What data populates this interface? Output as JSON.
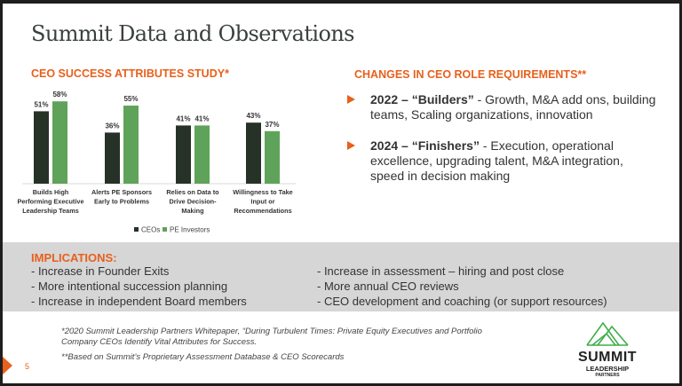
{
  "title": "Summit Data and Observations",
  "chart_data": {
    "type": "bar",
    "title": "CEO SUCCESS ATTRIBUTES STUDY*",
    "categories": [
      "Builds High Performing Executive Leadership Teams",
      "Alerts PE Sponsors Early to Problems",
      "Relies on Data to Drive Decision-Making",
      "Willingness to Take Input or Recommendations"
    ],
    "category_lines": [
      [
        "Builds High",
        "Performing Executive",
        "Leadership Teams"
      ],
      [
        "Alerts PE Sponsors",
        "Early to Problems"
      ],
      [
        "Relies on Data to",
        "Drive Decision-",
        "Making"
      ],
      [
        "Willingness to Take",
        "Input or",
        "Recommendations"
      ]
    ],
    "series": [
      {
        "name": "CEOs",
        "values": [
          51,
          36,
          41,
          43
        ],
        "labels": [
          "51%",
          "36%",
          "41%",
          "43%"
        ],
        "color": "#263228"
      },
      {
        "name": "PE Investors",
        "values": [
          58,
          55,
          41,
          37
        ],
        "labels": [
          "58%",
          "55%",
          "41%",
          "37%"
        ],
        "color": "#5fa35a"
      }
    ],
    "ylim": [
      0,
      60
    ],
    "grid": false,
    "legend": "bottom"
  },
  "changes": {
    "heading": "CHANGES IN CEO ROLE REQUIREMENTS**",
    "items": [
      {
        "bold": "2022 – “Builders”",
        "text": " - Growth, M&A add ons, building teams, Scaling organizations, innovation"
      },
      {
        "bold": "2024 – “Finishers”",
        "text": " - Execution, operational excellence, upgrading talent, M&A integration, speed in decision making"
      }
    ]
  },
  "implications": {
    "heading": "IMPLICATIONS:",
    "left": [
      "- Increase in Founder Exits",
      "- More intentional succession planning",
      "- Increase in independent Board members"
    ],
    "right": [
      "- Increase in assessment – hiring and post close",
      "- More annual CEO reviews",
      "- CEO development and coaching (or support resources)"
    ]
  },
  "footnotes": [
    "*2020 Summit Leadership Partners Whitepaper, “During Turbulent Times: Private Equity Executives and Portfolio Company CEOs Identify Vital Attributes for Success.",
    "**Based on Summit’s Proprietary Assessment Database & CEO Scorecards"
  ],
  "page_number": "5",
  "logo": {
    "line1": "SUMMIT",
    "line2": "LEADERSHIP",
    "line3": "PARTNERS"
  },
  "colors": {
    "accent": "#e8601c",
    "ceo": "#263228",
    "pe": "#5fa35a",
    "band": "#d6d6d6",
    "logo": "#3fae49"
  }
}
